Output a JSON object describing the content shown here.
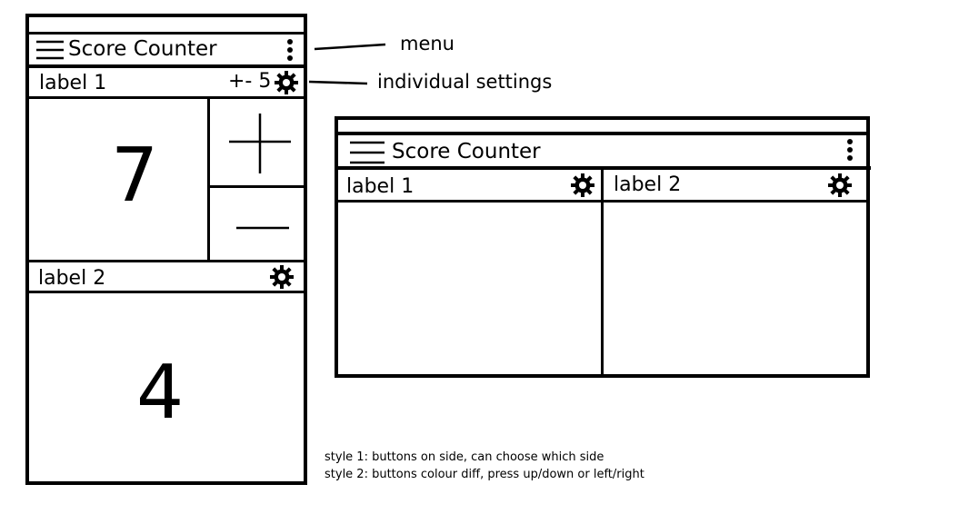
{
  "style1": {
    "app_title": "Score Counter",
    "counters": [
      {
        "label": "label 1",
        "step": "+- 5",
        "score": "7"
      },
      {
        "label": "label 2",
        "score": "4"
      }
    ]
  },
  "style2": {
    "app_title": "Score Counter",
    "counters": [
      {
        "label": "label 1"
      },
      {
        "label": "label 2"
      }
    ]
  },
  "annotations": {
    "menu": "menu",
    "individual_settings": "individual settings"
  },
  "notes": [
    "style 1: buttons on side, can choose which side",
    "style 2: buttons colour diff, press up/down or left/right"
  ],
  "icons": {
    "menu": "hamburger-icon",
    "overflow": "kebab-icon",
    "settings": "gear-icon",
    "increment": "plus-icon",
    "decrement": "minus-icon"
  }
}
